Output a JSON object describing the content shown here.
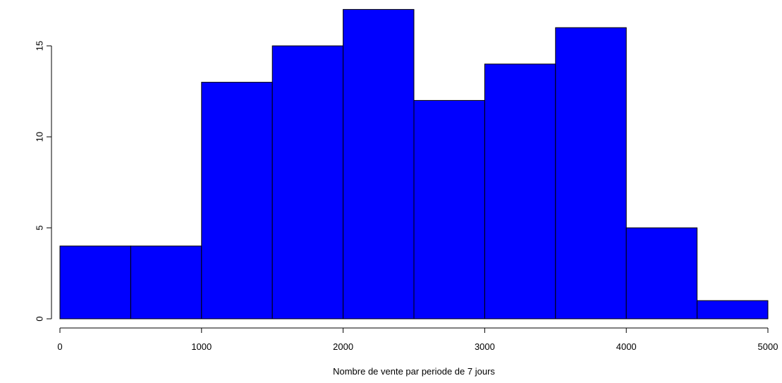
{
  "chart_data": {
    "type": "bar",
    "subtype": "histogram",
    "bin_edges": [
      0,
      500,
      1000,
      1500,
      2000,
      2500,
      3000,
      3500,
      4000,
      4500,
      5000
    ],
    "values": [
      4,
      4,
      13,
      15,
      17,
      12,
      14,
      16,
      5,
      1
    ],
    "xlabel": "Nombre de vente  par periode de 7 jours",
    "ylabel": "",
    "title": "",
    "xlim": [
      0,
      5000
    ],
    "ylim": [
      0,
      17
    ],
    "x_ticks": [
      0,
      1000,
      2000,
      3000,
      4000,
      5000
    ],
    "y_ticks": [
      0,
      5,
      10,
      15
    ],
    "grid": false,
    "bar_color": "#0000ff",
    "border_color": "#000000"
  }
}
